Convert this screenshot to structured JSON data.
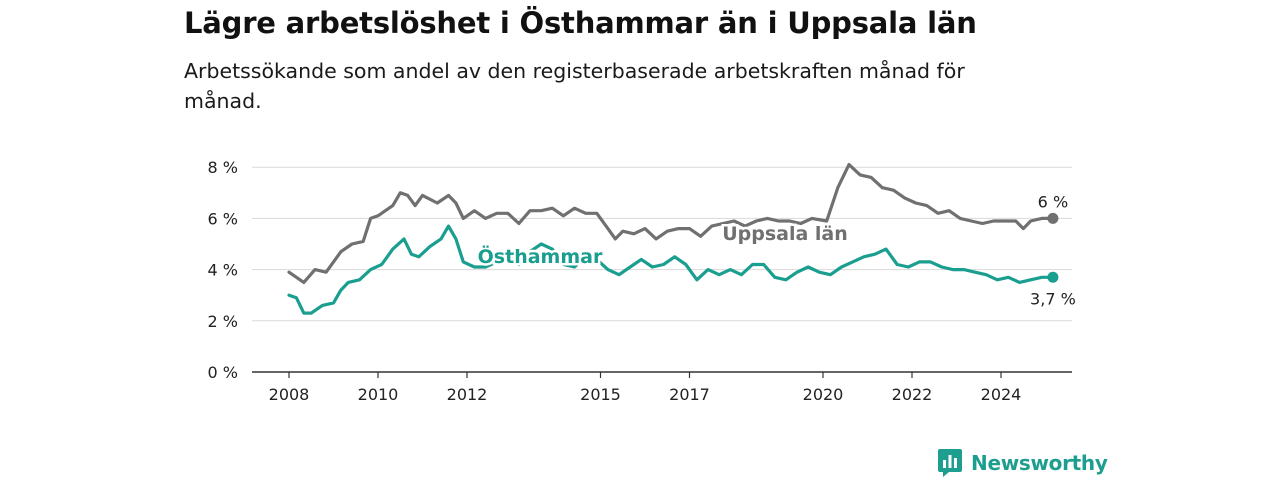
{
  "title": "Lägre arbetslöshet i Östhammar än i Uppsala län",
  "subtitle": "Arbetssökande som andel av den registerbaserade arbetskraften månad för månad.",
  "brand": {
    "name": "Newsworthy",
    "logo_icon": "bar-chart-logo-icon",
    "color": "#1d9e8f"
  },
  "chart_data": {
    "type": "line",
    "title": "Lägre arbetslöshet i Östhammar än i Uppsala län",
    "subtitle": "Arbetssökande som andel av den registerbaserade arbetskraften månad för månad.",
    "xlabel": "",
    "ylabel": "",
    "x_ticks": [
      "2008",
      "2010",
      "2012",
      "2015",
      "2017",
      "2020",
      "2022",
      "2024"
    ],
    "y_ticks": [
      "0 %",
      "2 %",
      "4 %",
      "6 %",
      "8 %"
    ],
    "ylim": [
      0,
      8.6
    ],
    "xlim": [
      "2007-12",
      "2025-12"
    ],
    "grid": "horizontal",
    "legend": "none (direct labels)",
    "series": [
      {
        "name": "Uppsala län",
        "color": "#707070",
        "last_label": "6 %",
        "points": [
          [
            "2008-01",
            3.9
          ],
          [
            "2008-05",
            3.5
          ],
          [
            "2008-08",
            4.0
          ],
          [
            "2008-11",
            3.9
          ],
          [
            "2009-03",
            4.7
          ],
          [
            "2009-06",
            5.0
          ],
          [
            "2009-09",
            5.1
          ],
          [
            "2009-11",
            6.0
          ],
          [
            "2010-01",
            6.1
          ],
          [
            "2010-05",
            6.5
          ],
          [
            "2010-07",
            7.0
          ],
          [
            "2010-09",
            6.9
          ],
          [
            "2010-11",
            6.5
          ],
          [
            "2011-01",
            6.9
          ],
          [
            "2011-05",
            6.6
          ],
          [
            "2011-08",
            6.9
          ],
          [
            "2011-10",
            6.6
          ],
          [
            "2011-12",
            6.0
          ],
          [
            "2012-03",
            6.3
          ],
          [
            "2012-06",
            6.0
          ],
          [
            "2012-09",
            6.2
          ],
          [
            "2012-12",
            6.2
          ],
          [
            "2013-03",
            5.8
          ],
          [
            "2013-06",
            6.3
          ],
          [
            "2013-09",
            6.3
          ],
          [
            "2013-12",
            6.4
          ],
          [
            "2014-03",
            6.1
          ],
          [
            "2014-06",
            6.4
          ],
          [
            "2014-09",
            6.2
          ],
          [
            "2014-12",
            6.2
          ],
          [
            "2015-03",
            5.6
          ],
          [
            "2015-05",
            5.2
          ],
          [
            "2015-07",
            5.5
          ],
          [
            "2015-10",
            5.4
          ],
          [
            "2016-01",
            5.6
          ],
          [
            "2016-04",
            5.2
          ],
          [
            "2016-07",
            5.5
          ],
          [
            "2016-10",
            5.6
          ],
          [
            "2017-01",
            5.6
          ],
          [
            "2017-04",
            5.3
          ],
          [
            "2017-07",
            5.7
          ],
          [
            "2017-10",
            5.8
          ],
          [
            "2018-01",
            5.9
          ],
          [
            "2018-04",
            5.7
          ],
          [
            "2018-07",
            5.9
          ],
          [
            "2018-10",
            6.0
          ],
          [
            "2019-01",
            5.9
          ],
          [
            "2019-04",
            5.9
          ],
          [
            "2019-07",
            5.8
          ],
          [
            "2019-10",
            6.0
          ],
          [
            "2020-02",
            5.9
          ],
          [
            "2020-05",
            7.2
          ],
          [
            "2020-08",
            8.1
          ],
          [
            "2020-11",
            7.7
          ],
          [
            "2021-02",
            7.6
          ],
          [
            "2021-05",
            7.2
          ],
          [
            "2021-08",
            7.1
          ],
          [
            "2021-11",
            6.8
          ],
          [
            "2022-02",
            6.6
          ],
          [
            "2022-05",
            6.5
          ],
          [
            "2022-08",
            6.2
          ],
          [
            "2022-11",
            6.3
          ],
          [
            "2023-02",
            6.0
          ],
          [
            "2023-05",
            5.9
          ],
          [
            "2023-08",
            5.8
          ],
          [
            "2023-11",
            5.9
          ],
          [
            "2024-02",
            5.9
          ],
          [
            "2024-05",
            5.9
          ],
          [
            "2024-07",
            5.6
          ],
          [
            "2024-09",
            5.9
          ],
          [
            "2024-12",
            6.0
          ],
          [
            "2025-03",
            6.0
          ]
        ]
      },
      {
        "name": "Östhammar",
        "color": "#1a9e8f",
        "last_label": "3,7 %",
        "points": [
          [
            "2008-01",
            3.0
          ],
          [
            "2008-03",
            2.9
          ],
          [
            "2008-05",
            2.3
          ],
          [
            "2008-07",
            2.3
          ],
          [
            "2008-10",
            2.6
          ],
          [
            "2009-01",
            2.7
          ],
          [
            "2009-03",
            3.2
          ],
          [
            "2009-05",
            3.5
          ],
          [
            "2009-08",
            3.6
          ],
          [
            "2009-11",
            4.0
          ],
          [
            "2010-02",
            4.2
          ],
          [
            "2010-05",
            4.8
          ],
          [
            "2010-08",
            5.2
          ],
          [
            "2010-10",
            4.6
          ],
          [
            "2010-12",
            4.5
          ],
          [
            "2011-03",
            4.9
          ],
          [
            "2011-06",
            5.2
          ],
          [
            "2011-08",
            5.7
          ],
          [
            "2011-10",
            5.2
          ],
          [
            "2011-12",
            4.3
          ],
          [
            "2012-03",
            4.1
          ],
          [
            "2012-06",
            4.1
          ],
          [
            "2012-09",
            4.3
          ],
          [
            "2012-12",
            4.6
          ],
          [
            "2013-03",
            4.2
          ],
          [
            "2013-06",
            4.7
          ],
          [
            "2013-09",
            5.0
          ],
          [
            "2013-12",
            4.8
          ],
          [
            "2014-03",
            4.2
          ],
          [
            "2014-06",
            4.1
          ],
          [
            "2014-09",
            4.5
          ],
          [
            "2014-12",
            4.4
          ],
          [
            "2015-03",
            4.0
          ],
          [
            "2015-06",
            3.8
          ],
          [
            "2015-09",
            4.1
          ],
          [
            "2015-12",
            4.4
          ],
          [
            "2016-03",
            4.1
          ],
          [
            "2016-06",
            4.2
          ],
          [
            "2016-09",
            4.5
          ],
          [
            "2016-12",
            4.2
          ],
          [
            "2017-03",
            3.6
          ],
          [
            "2017-06",
            4.0
          ],
          [
            "2017-09",
            3.8
          ],
          [
            "2017-12",
            4.0
          ],
          [
            "2018-03",
            3.8
          ],
          [
            "2018-06",
            4.2
          ],
          [
            "2018-09",
            4.2
          ],
          [
            "2018-12",
            3.7
          ],
          [
            "2019-03",
            3.6
          ],
          [
            "2019-06",
            3.9
          ],
          [
            "2019-09",
            4.1
          ],
          [
            "2019-12",
            3.9
          ],
          [
            "2020-03",
            3.8
          ],
          [
            "2020-06",
            4.1
          ],
          [
            "2020-09",
            4.3
          ],
          [
            "2020-12",
            4.5
          ],
          [
            "2021-03",
            4.6
          ],
          [
            "2021-06",
            4.8
          ],
          [
            "2021-09",
            4.2
          ],
          [
            "2021-12",
            4.1
          ],
          [
            "2022-03",
            4.3
          ],
          [
            "2022-06",
            4.3
          ],
          [
            "2022-09",
            4.1
          ],
          [
            "2022-12",
            4.0
          ],
          [
            "2023-03",
            4.0
          ],
          [
            "2023-06",
            3.9
          ],
          [
            "2023-09",
            3.8
          ],
          [
            "2023-12",
            3.6
          ],
          [
            "2024-03",
            3.7
          ],
          [
            "2024-06",
            3.5
          ],
          [
            "2024-09",
            3.6
          ],
          [
            "2024-12",
            3.7
          ],
          [
            "2025-03",
            3.7
          ]
        ]
      }
    ]
  }
}
